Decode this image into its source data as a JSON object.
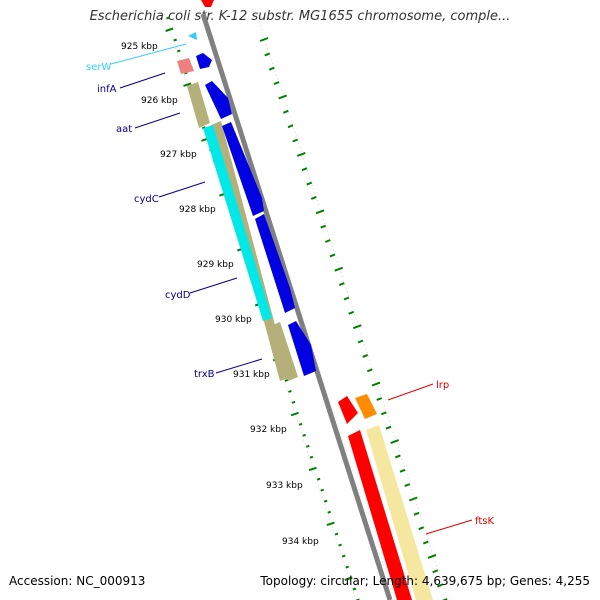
{
  "title": "Escherichia coli str. K-12 substr. MG1655 chromosome, comple...",
  "footer": {
    "accession": "Accession: NC_000913",
    "summary": "Topology: circular; Length: 4,639,675 bp; Genes: 4,255"
  },
  "colors": {
    "backbone": "#808080",
    "tick": "#008000",
    "forward_cds": "#0000e0",
    "trna": "#f08080",
    "trna_label": "#33ccff",
    "cds_label": "#00008b",
    "reverse_label": "#e00000",
    "olive": "#b5b07a",
    "cyan": "#00e8e8",
    "red": "#ff0000",
    "orange": "#ff8c00",
    "pale_yellow": "#f5e7a0"
  },
  "scale_ticks": [
    {
      "label": "925 kbp"
    },
    {
      "label": "926 kbp"
    },
    {
      "label": "927 kbp"
    },
    {
      "label": "928 kbp"
    },
    {
      "label": "929 kbp"
    },
    {
      "label": "930 kbp"
    },
    {
      "label": "931 kbp"
    },
    {
      "label": "932 kbp"
    },
    {
      "label": "933 kbp"
    },
    {
      "label": "934 kbp"
    }
  ],
  "gene_labels": [
    {
      "name": "serW",
      "strand": "forward",
      "kind": "tRNA"
    },
    {
      "name": "infA",
      "strand": "forward",
      "kind": "CDS"
    },
    {
      "name": "aat",
      "strand": "forward",
      "kind": "CDS"
    },
    {
      "name": "cydC",
      "strand": "forward",
      "kind": "CDS"
    },
    {
      "name": "cydD",
      "strand": "forward",
      "kind": "CDS"
    },
    {
      "name": "trxB",
      "strand": "forward",
      "kind": "CDS"
    },
    {
      "name": "lrp",
      "strand": "reverse",
      "kind": "CDS"
    },
    {
      "name": "ftsK",
      "strand": "reverse",
      "kind": "CDS"
    }
  ]
}
